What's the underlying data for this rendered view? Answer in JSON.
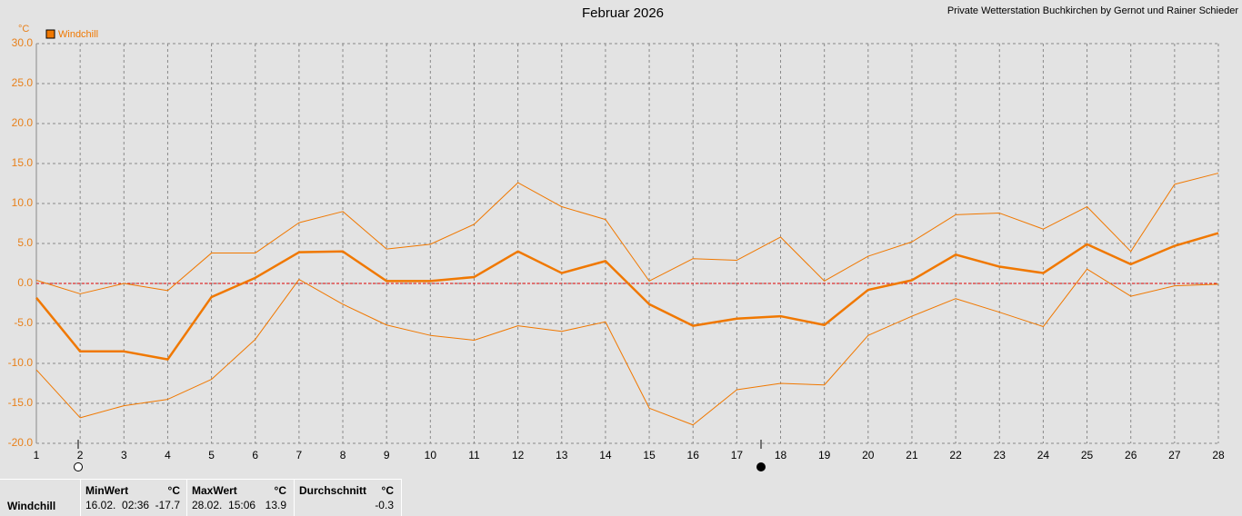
{
  "chart_data": {
    "type": "line",
    "title": "Februar 2026",
    "credit": "Private Wetterstation Buchkirchen by Gernot und Rainer Schieder",
    "y_unit": "°C",
    "legend": "Windchill",
    "legend_color": "#f07800",
    "x": [
      1,
      2,
      3,
      4,
      5,
      6,
      7,
      8,
      9,
      10,
      11,
      12,
      13,
      14,
      15,
      16,
      17,
      18,
      19,
      20,
      21,
      22,
      23,
      24,
      25,
      26,
      27,
      28
    ],
    "xlim": [
      1,
      28
    ],
    "xticks": [
      1,
      2,
      3,
      4,
      5,
      6,
      7,
      8,
      9,
      10,
      11,
      12,
      13,
      14,
      15,
      16,
      17,
      18,
      19,
      20,
      21,
      22,
      23,
      24,
      25,
      26,
      27,
      28
    ],
    "ylim": [
      -20,
      30
    ],
    "yticks": [
      {
        "value": -20,
        "label": "-20.0"
      },
      {
        "value": -15,
        "label": "-15.0"
      },
      {
        "value": -10,
        "label": "-10.0"
      },
      {
        "value": -5,
        "label": "-5.0"
      },
      {
        "value": 0,
        "label": "0.0"
      },
      {
        "value": 5,
        "label": "5.0"
      },
      {
        "value": 10,
        "label": "10.0"
      },
      {
        "value": 15,
        "label": "15.0"
      },
      {
        "value": 20,
        "label": "20.0"
      },
      {
        "value": 25,
        "label": "25.0"
      },
      {
        "value": 30,
        "label": "30.0"
      }
    ],
    "grid": true,
    "zero_line_color": "#dd0000",
    "series": [
      {
        "color": "#f07800",
        "width": 1,
        "values": [
          0.4,
          -1.3,
          0.0,
          -0.9,
          3.8,
          3.8,
          7.6,
          9.0,
          4.3,
          4.9,
          7.4,
          12.6,
          9.6,
          8.0,
          0.3,
          3.1,
          2.9,
          5.8,
          0.3,
          3.4,
          5.2,
          8.6,
          8.8,
          6.8,
          9.6,
          4.0,
          12.4,
          13.8
        ]
      },
      {
        "color": "#f07800",
        "width": 2.5,
        "values": [
          -1.8,
          -8.5,
          -8.5,
          -9.5,
          -1.7,
          0.7,
          3.9,
          4.0,
          0.3,
          0.3,
          0.8,
          4.0,
          1.3,
          2.8,
          -2.6,
          -5.3,
          -4.4,
          -4.1,
          -5.2,
          -0.8,
          0.4,
          3.6,
          2.1,
          1.3,
          4.9,
          2.4,
          4.7,
          6.3
        ]
      },
      {
        "color": "#f07800",
        "width": 1,
        "values": [
          -10.8,
          -16.8,
          -15.3,
          -14.5,
          -12.0,
          -7.0,
          0.5,
          -2.6,
          -5.2,
          -6.5,
          -7.1,
          -5.3,
          -6.0,
          -4.8,
          -15.6,
          -17.7,
          -13.3,
          -12.5,
          -12.7,
          -6.5,
          -4.1,
          -1.9,
          -3.6,
          -5.4,
          1.8,
          -1.6,
          -0.3,
          -0.1
        ]
      }
    ]
  },
  "stats": {
    "row_label": "Windchill",
    "columns": [
      {
        "header": "MinWert",
        "unit": "°C",
        "time": "16.02.  02:36",
        "value": -17.7
      },
      {
        "header": "MaxWert",
        "unit": "°C",
        "time": "28.02.  15:06",
        "value": 13.9
      },
      {
        "header": "Durchschnitt",
        "unit": "°C",
        "value": -0.3
      }
    ]
  }
}
